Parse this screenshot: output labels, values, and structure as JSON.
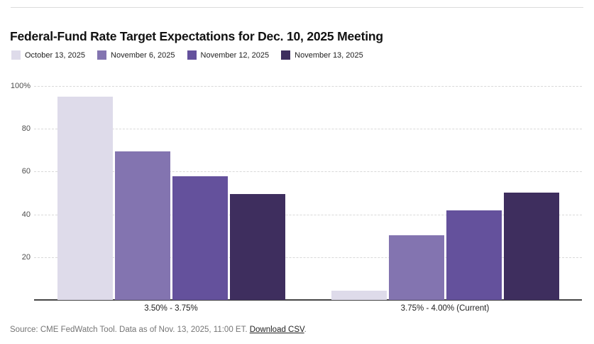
{
  "page": {
    "title": "Federal-Fund Rate Target Expectations for Dec. 10, 2025 Meeting",
    "footer": {
      "source_text": "Source: CME FedWatch Tool. Data as of Nov. 13, 2025, 11:00 ET. ",
      "download_link_label": "Download CSV",
      "trailing_period": "."
    }
  },
  "chart_data": {
    "type": "bar",
    "title": "Federal-Fund Rate Target Expectations for Dec. 10, 2025 Meeting",
    "categories": [
      "3.50% - 3.75%",
      "3.75% - 4.00% (Current)"
    ],
    "series": [
      {
        "name": "October 13, 2025",
        "color": "#dedbea",
        "values": [
          95.0,
          4.2
        ]
      },
      {
        "name": "November 6, 2025",
        "color": "#8374b0",
        "values": [
          69.6,
          30.1
        ]
      },
      {
        "name": "November 12, 2025",
        "color": "#64519c",
        "values": [
          57.8,
          41.8
        ]
      },
      {
        "name": "November 13, 2025",
        "color": "#3e2e5e",
        "values": [
          49.4,
          50.2
        ]
      }
    ],
    "xlabel": "",
    "ylabel": "",
    "ylim": [
      0,
      100
    ],
    "yticks": [
      {
        "value": 100,
        "label": "100%"
      },
      {
        "value": 80,
        "label": "80"
      },
      {
        "value": 60,
        "label": "60"
      },
      {
        "value": 40,
        "label": "40"
      },
      {
        "value": 20,
        "label": "20"
      }
    ],
    "grid": "horizontal-dashed",
    "legend_position": "top-left"
  },
  "colors": {
    "grid": "#d9d9d9",
    "axis_line": "#454545",
    "top_rule": "#dcdcdc",
    "ytick_text": "#4d4d4d",
    "label_text": "#222222",
    "footer_text": "#757575",
    "title_text": "#111111"
  }
}
